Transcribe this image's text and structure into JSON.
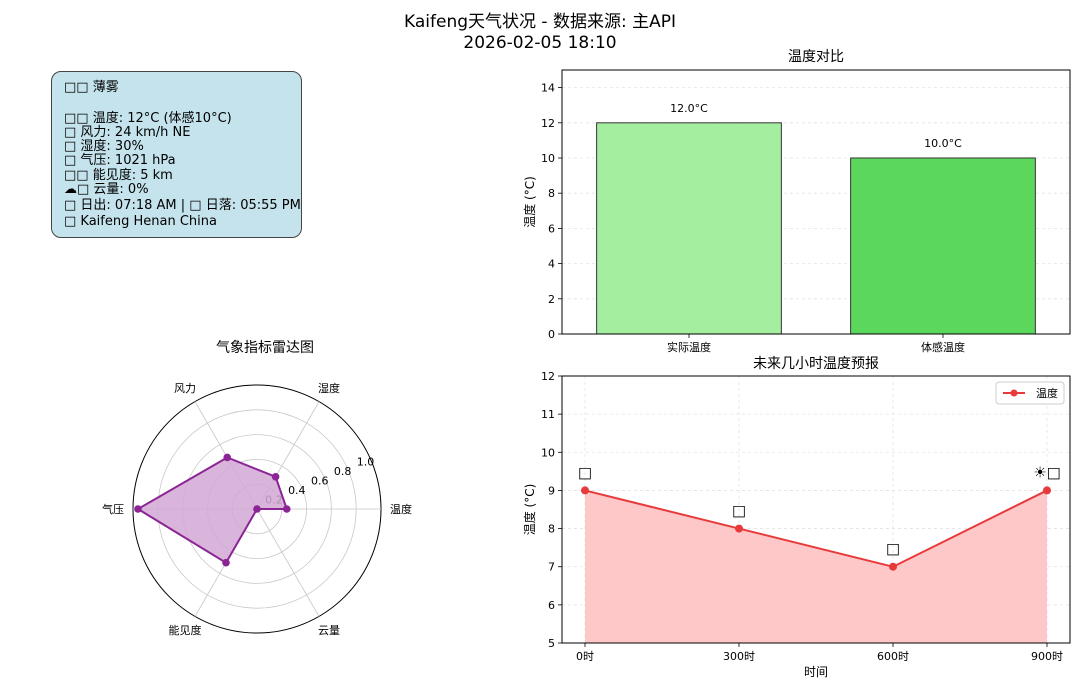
{
  "suptitle": {
    "line1": "Kaifeng天气状况 - 数据来源: 主API",
    "line2": "2026-02-05 18:10"
  },
  "info_box": {
    "lines": [
      "□□ 薄雾",
      "□□ 温度: 12°C (体感10°C)",
      "□ 风力: 24 km/h NE",
      "□ 湿度: 30%",
      "□ 气压: 1021 hPa",
      "□□ 能见度: 5 km",
      "☁□ 云量: 0%",
      "□ 日出: 07:18 AM | □ 日落: 05:55 PM",
      "□ Kaifeng Henan China"
    ]
  },
  "chart_data": [
    {
      "type": "bar",
      "title": "温度对比",
      "categories": [
        "实际温度",
        "体感温度"
      ],
      "values": [
        12,
        10
      ],
      "data_labels": [
        "12.0°C",
        "10.0°C"
      ],
      "colors": [
        "#a4ef9f",
        "#5bd85b"
      ],
      "ylabel": "温度 (°C)",
      "ylim": [
        0,
        15
      ],
      "yticks": [
        0,
        2,
        4,
        6,
        8,
        10,
        12,
        14
      ],
      "grid": true
    },
    {
      "type": "line",
      "title": "未来几小时温度预报",
      "x": [
        0,
        300,
        600,
        900
      ],
      "xtick_labels": [
        "0时",
        "300时",
        "600时",
        "900时"
      ],
      "series": [
        {
          "name": "温度",
          "values": [
            9,
            8,
            7,
            9
          ],
          "color": "#e83a3a",
          "fill": "#ffc8c8"
        }
      ],
      "point_icons": [
        "□",
        "□",
        "□",
        "☀□"
      ],
      "xlabel": "时间",
      "ylabel": "温度 (°C)",
      "ylim": [
        5,
        12
      ],
      "yticks": [
        5,
        6,
        7,
        8,
        9,
        10,
        11,
        12
      ],
      "legend": "top-right",
      "grid": true
    },
    {
      "type": "radar",
      "title": "气象指标雷达图",
      "categories": [
        "温度",
        "湿度",
        "风力",
        "气压",
        "能见度",
        "云量"
      ],
      "values": [
        0.24,
        0.3,
        0.48,
        0.96,
        0.5,
        0.0
      ],
      "rticks": [
        0.2,
        0.4,
        0.6,
        0.8,
        1.0
      ],
      "rlim": [
        0,
        1
      ],
      "color": "#8b2596",
      "fill": "#d3a8d5"
    }
  ]
}
